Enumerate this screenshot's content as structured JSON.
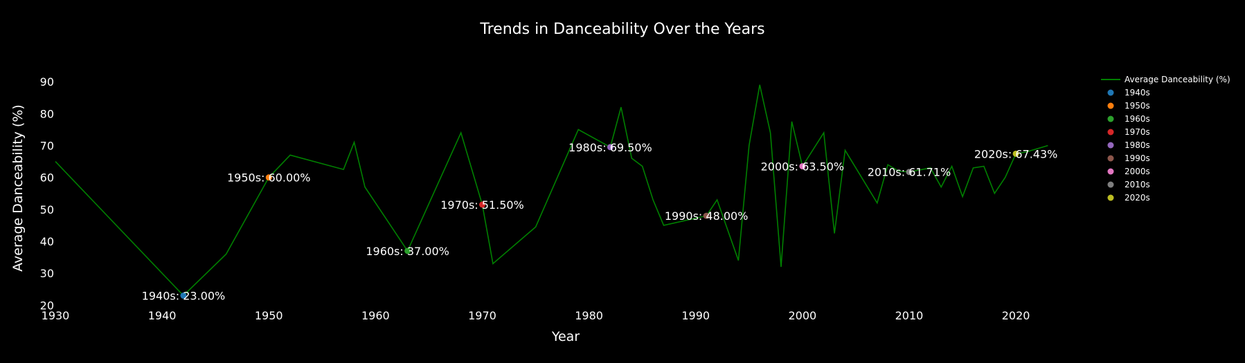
{
  "chart_data": {
    "type": "line",
    "title": "Trends in Danceability Over the Years",
    "xlabel": "Year",
    "ylabel": "Average Danceability (%)",
    "xlim": [
      1930,
      2027
    ],
    "ylim": [
      19,
      95
    ],
    "x_ticks": [
      1930,
      1940,
      1950,
      1960,
      1970,
      1980,
      1990,
      2000,
      2010,
      2020
    ],
    "y_ticks": [
      20,
      30,
      40,
      50,
      60,
      70,
      80,
      90
    ],
    "grid": false,
    "legend_position": "top-right",
    "line_color": "#008000",
    "series": [
      {
        "name": "Average Danceability (%)",
        "x": [
          1930,
          1942,
          1946,
          1950,
          1952,
          1957,
          1958,
          1959,
          1963,
          1968,
          1970,
          1971,
          1975,
          1979,
          1982,
          1983,
          1984,
          1985,
          1986,
          1987,
          1991,
          1992,
          1994,
          1995,
          1996,
          1997,
          1998,
          1999,
          2000,
          2002,
          2003,
          2004,
          2007,
          2008,
          2009,
          2010,
          2012,
          2013,
          2014,
          2015,
          2016,
          2017,
          2018,
          2019,
          2020,
          2021,
          2023
        ],
        "y": [
          65,
          23,
          36,
          60,
          67,
          62.5,
          71,
          57,
          37,
          74,
          51.5,
          33,
          44.5,
          75,
          69.5,
          82,
          66,
          63.5,
          53,
          45,
          48,
          53,
          34,
          70,
          89,
          74,
          32,
          77.5,
          63.5,
          74,
          42.5,
          68.5,
          52,
          64,
          62,
          61.71,
          63,
          57,
          63.5,
          54,
          63,
          63.5,
          55,
          60,
          67.43,
          68,
          70
        ]
      }
    ],
    "markers": [
      {
        "name": "1940s",
        "x": 1942,
        "y": 23,
        "label": "1940s: 23.00%",
        "color": "#1f77b4"
      },
      {
        "name": "1950s",
        "x": 1950,
        "y": 60,
        "label": "1950s: 60.00%",
        "color": "#ff7f0e"
      },
      {
        "name": "1960s",
        "x": 1963,
        "y": 37,
        "label": "1960s: 37.00%",
        "color": "#2ca02c"
      },
      {
        "name": "1970s",
        "x": 1970,
        "y": 51.5,
        "label": "1970s: 51.50%",
        "color": "#d62728"
      },
      {
        "name": "1980s",
        "x": 1982,
        "y": 69.5,
        "label": "1980s: 69.50%",
        "color": "#9467bd"
      },
      {
        "name": "1990s",
        "x": 1991,
        "y": 48,
        "label": "1990s: 48.00%",
        "color": "#8c564b"
      },
      {
        "name": "2000s",
        "x": 2000,
        "y": 63.5,
        "label": "2000s: 63.50%",
        "color": "#e377c2"
      },
      {
        "name": "2010s",
        "x": 2010,
        "y": 61.71,
        "label": "2010s: 61.71%",
        "color": "#7f7f7f"
      },
      {
        "name": "2020s",
        "x": 2020,
        "y": 67.43,
        "label": "2020s: 67.43%",
        "color": "#bcbd22"
      }
    ]
  }
}
